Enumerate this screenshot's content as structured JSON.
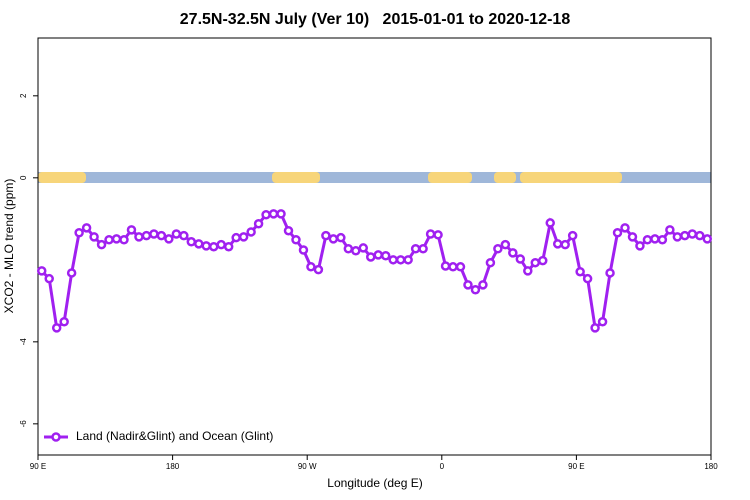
{
  "chart_data": {
    "type": "line",
    "title": "27.5N-32.5N July (Ver 10)   2015-01-01 to 2020-12-18",
    "x_label": "Longitude (deg E)",
    "y_label": "XCO2 - MLO trend (ppm)",
    "xlim": [
      90,
      540
    ],
    "ylim": [
      -6.76,
      3.41
    ],
    "xticks": [
      {
        "value": 90,
        "label": "90 E"
      },
      180,
      {
        "value": 270,
        "label": "90 W"
      },
      {
        "value": 360,
        "label": "0"
      },
      {
        "value": 450,
        "label": "90 E"
      },
      {
        "value": 540,
        "label": "180"
      }
    ],
    "yticks": [
      -6,
      -4,
      0,
      2
    ],
    "grid": false,
    "legend": "bottom-left",
    "x": [
      92.5,
      97.5,
      102.5,
      107.5,
      112.5,
      117.5,
      122.5,
      127.5,
      132.5,
      137.5,
      142.5,
      147.5,
      152.5,
      157.5,
      162.5,
      167.5,
      172.5,
      177.5,
      182.5,
      187.5,
      192.5,
      197.5,
      202.5,
      207.5,
      212.5,
      217.5,
      222.5,
      227.5,
      232.5,
      237.5,
      242.5,
      247.5,
      252.5,
      257.5,
      262.5,
      267.5,
      272.5,
      277.5,
      282.5,
      287.5,
      292.5,
      297.5,
      302.5,
      307.5,
      312.5,
      317.5,
      322.5,
      327.5,
      332.5,
      337.5,
      342.5,
      347.5,
      352.5,
      357.5,
      362.5,
      367.5,
      372.5,
      377.5,
      382.5,
      387.5,
      392.5,
      397.5,
      402.5,
      407.5,
      412.5,
      417.5,
      422.5,
      427.5,
      432.5,
      437.5,
      442.5,
      447.5,
      452.5,
      457.5,
      462.5,
      467.5,
      472.5,
      477.5,
      482.5,
      487.5,
      492.5,
      497.5,
      502.5,
      507.5,
      512.5,
      517.5,
      522.5,
      527.5,
      532.5,
      537.5
    ],
    "series": [
      {
        "name": "Land (Nadir&Glint) and Ocean (Glint)",
        "color": "#a020f0",
        "values": [
          -2.27,
          -2.46,
          -3.66,
          -3.51,
          -2.32,
          -1.34,
          -1.22,
          -1.44,
          -1.63,
          -1.51,
          -1.49,
          -1.51,
          -1.27,
          -1.44,
          -1.41,
          -1.37,
          -1.41,
          -1.49,
          -1.37,
          -1.41,
          -1.56,
          -1.61,
          -1.66,
          -1.68,
          -1.63,
          -1.68,
          -1.46,
          -1.44,
          -1.32,
          -1.12,
          -0.9,
          -0.88,
          -0.88,
          -1.29,
          -1.51,
          -1.76,
          -2.17,
          -2.24,
          -1.41,
          -1.49,
          -1.46,
          -1.73,
          -1.78,
          -1.71,
          -1.93,
          -1.88,
          -1.9,
          -2.0,
          -2.0,
          -2.0,
          -1.73,
          -1.73,
          -1.37,
          -1.39,
          -2.15,
          -2.17,
          -2.17,
          -2.61,
          -2.73,
          -2.61,
          -2.07,
          -1.73,
          -1.63,
          -1.83,
          -1.98,
          -2.27,
          -2.07,
          -2.02,
          -1.1,
          -1.61,
          -1.63,
          -1.41,
          -2.29,
          -2.46,
          -3.66,
          -3.51,
          -2.32,
          -1.34,
          -1.22,
          -1.44,
          -1.66,
          -1.51,
          -1.49,
          -1.51,
          -1.27,
          -1.44,
          -1.41,
          -1.37,
          -1.41,
          -1.49
        ]
      }
    ]
  }
}
